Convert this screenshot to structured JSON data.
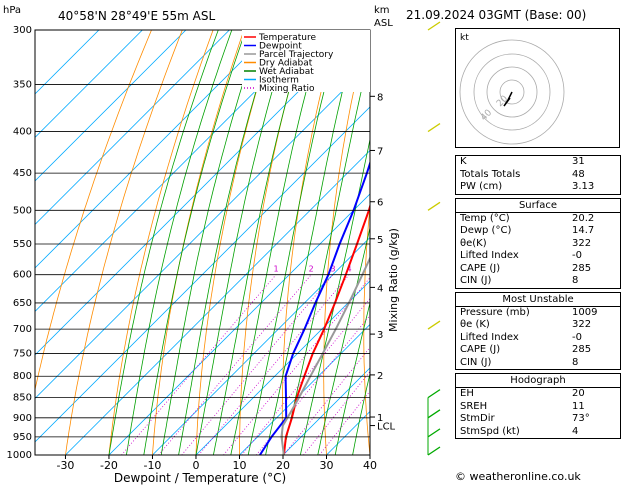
{
  "header": {
    "left_unit": "hPa",
    "location": "40°58'N  28°49'E  55m  ASL",
    "km_unit": "km",
    "km_unit2": "ASL",
    "date": "21.09.2024  03GMT  (Base: 00)"
  },
  "legend": [
    {
      "label": "Temperature",
      "color": "#ff0000",
      "style": "solid"
    },
    {
      "label": "Dewpoint",
      "color": "#0000ff",
      "style": "solid"
    },
    {
      "label": "Parcel Trajectory",
      "color": "#999999",
      "style": "solid"
    },
    {
      "label": "Dry Adiabat",
      "color": "#ff8c00",
      "style": "solid"
    },
    {
      "label": "Wet Adiabat",
      "color": "#008000",
      "style": "solid"
    },
    {
      "label": "Isotherm",
      "color": "#00aaff",
      "style": "solid"
    },
    {
      "label": "Mixing Ratio",
      "color": "#cc00cc",
      "style": "dotted"
    }
  ],
  "chart_data": {
    "type": "line",
    "xlabel": "Dewpoint / Temperature (°C)",
    "ylabel": "Mixing Ratio (g/kg)",
    "x_ticks": [
      -30,
      -20,
      -10,
      0,
      10,
      20,
      30,
      40
    ],
    "xlim": [
      -37,
      40
    ],
    "pressure_levels": [
      300,
      350,
      400,
      450,
      500,
      550,
      600,
      650,
      700,
      750,
      800,
      850,
      900,
      950,
      1000
    ],
    "ylim": [
      300,
      1000
    ],
    "y_scale": "log",
    "km_ticks": [
      {
        "p": 362,
        "label": "8"
      },
      {
        "p": 422,
        "label": "7"
      },
      {
        "p": 488,
        "label": "6"
      },
      {
        "p": 542,
        "label": "5"
      },
      {
        "p": 622,
        "label": "4"
      },
      {
        "p": 710,
        "label": "3"
      },
      {
        "p": 797,
        "label": "2"
      },
      {
        "p": 898,
        "label": "1"
      },
      {
        "p": 920,
        "label": "LCL"
      }
    ],
    "mixing_ratio_labels": [
      1,
      2,
      3,
      4,
      6,
      8,
      10,
      15,
      20,
      25
    ],
    "series": [
      {
        "name": "Temperature",
        "color": "#ff0000",
        "p": [
          1000,
          950,
          900,
          850,
          800,
          750,
          700,
          650,
          600,
          550,
          500,
          450,
          400,
          350,
          300
        ],
        "t": [
          20.2,
          16.5,
          13.5,
          10.0,
          6.8,
          3.5,
          0.5,
          -3.0,
          -7.0,
          -11.5,
          -16.5,
          -22.5,
          -29.5,
          -38.0,
          -47.5
        ]
      },
      {
        "name": "Dewpoint",
        "color": "#0000ff",
        "p": [
          1000,
          950,
          900,
          850,
          800,
          750,
          700,
          650,
          600,
          550,
          500,
          450,
          400,
          350,
          300
        ],
        "t": [
          14.7,
          13.2,
          12.2,
          7.5,
          2.5,
          -1.0,
          -4.0,
          -7.5,
          -11.0,
          -15.5,
          -20.0,
          -25.5,
          -32.0,
          -40.0,
          -49.0
        ]
      },
      {
        "name": "Parcel Trajectory",
        "color": "#999999",
        "p": [
          1000,
          950,
          920,
          900,
          850,
          800,
          750,
          700,
          650,
          600,
          550,
          500,
          450,
          400,
          350,
          300
        ],
        "t": [
          20.2,
          15.5,
          13.2,
          12.5,
          10.5,
          8.2,
          5.8,
          3.2,
          0.2,
          -3.2,
          -7.0,
          -11.5,
          -17.0,
          -23.5,
          -31.5,
          -41.0
        ]
      }
    ]
  },
  "hodograph": {
    "label": "kt",
    "ring_labels": [
      "20",
      "40"
    ]
  },
  "indices": [
    {
      "k": "K",
      "v": "31"
    },
    {
      "k": "Totals Totals",
      "v": "48"
    },
    {
      "k": "PW (cm)",
      "v": "3.13"
    }
  ],
  "surface": {
    "title": "Surface",
    "rows": [
      {
        "k": "Temp (°C)",
        "v": "20.2"
      },
      {
        "k": "Dewp (°C)",
        "v": "14.7"
      },
      {
        "k": "θe(K)",
        "v": "322"
      },
      {
        "k": "Lifted Index",
        "v": "-0"
      },
      {
        "k": "CAPE (J)",
        "v": "285"
      },
      {
        "k": "CIN (J)",
        "v": "8"
      }
    ]
  },
  "most_unstable": {
    "title": "Most Unstable",
    "rows": [
      {
        "k": "Pressure (mb)",
        "v": "1009"
      },
      {
        "k": "θe (K)",
        "v": "322"
      },
      {
        "k": "Lifted Index",
        "v": "-0"
      },
      {
        "k": "CAPE (J)",
        "v": "285"
      },
      {
        "k": "CIN (J)",
        "v": "8"
      }
    ]
  },
  "hodograph_table": {
    "title": "Hodograph",
    "rows": [
      {
        "k": "EH",
        "v": "20"
      },
      {
        "k": "SREH",
        "v": "11"
      },
      {
        "k": "StmDir",
        "v": "73°"
      },
      {
        "k": "StmSpd (kt)",
        "v": "4"
      }
    ]
  },
  "credit": "© weatheronline.co.uk"
}
